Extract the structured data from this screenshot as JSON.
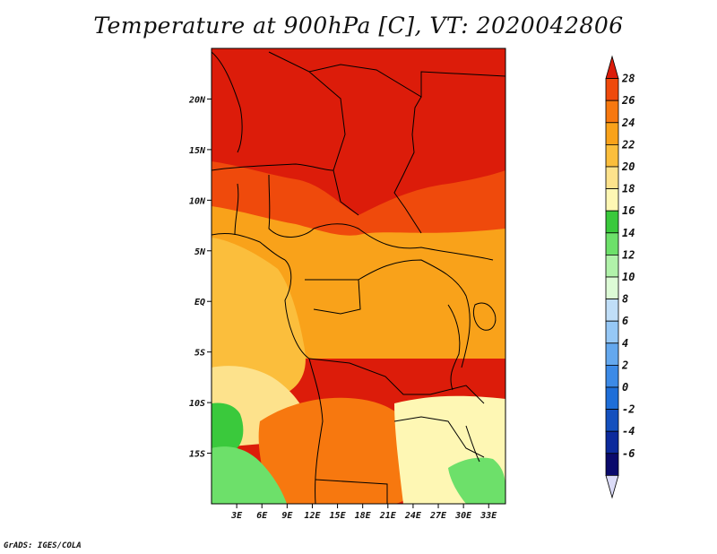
{
  "title": "Temperature at 900hPa [C], VT: 2020042806",
  "credit": "GrADS: IGES/COLA",
  "map": {
    "lat_range": [
      -20,
      25
    ],
    "lon_range": [
      0,
      35
    ],
    "lat_ticks": [
      {
        "lat": 20,
        "label": "20N"
      },
      {
        "lat": 15,
        "label": "15N"
      },
      {
        "lat": 10,
        "label": "10N"
      },
      {
        "lat": 5,
        "label": "5N"
      },
      {
        "lat": 0,
        "label": "EQ"
      },
      {
        "lat": -5,
        "label": "5S"
      },
      {
        "lat": -10,
        "label": "10S"
      },
      {
        "lat": -15,
        "label": "15S"
      }
    ],
    "lon_ticks": [
      {
        "lon": 3,
        "label": "3E"
      },
      {
        "lon": 6,
        "label": "6E"
      },
      {
        "lon": 9,
        "label": "9E"
      },
      {
        "lon": 12,
        "label": "12E"
      },
      {
        "lon": 15,
        "label": "15E"
      },
      {
        "lon": 18,
        "label": "18E"
      },
      {
        "lon": 21,
        "label": "21E"
      },
      {
        "lon": 24,
        "label": "24E"
      },
      {
        "lon": 27,
        "label": "27E"
      },
      {
        "lon": 30,
        "label": "30E"
      },
      {
        "lon": 33,
        "label": "33E"
      }
    ]
  },
  "colorbar": {
    "levels": [
      "28",
      "26",
      "24",
      "22",
      "20",
      "18",
      "16",
      "14",
      "12",
      "10",
      "8",
      "6",
      "4",
      "2",
      "0",
      "-2",
      "-4",
      "-6"
    ],
    "colors": [
      "#dc1c0a",
      "#ef4a0c",
      "#f7780f",
      "#f9a21a",
      "#fbbe3c",
      "#fde28c",
      "#fef7b4",
      "#3ac93c",
      "#6de06a",
      "#b1f2aa",
      "#ddfbd6",
      "#c0def8",
      "#96c8f6",
      "#64a8ee",
      "#3c8ae6",
      "#1e6ed8",
      "#1450be",
      "#0c2a9c",
      "#0a0a6c",
      "#dcdcf8"
    ]
  },
  "regions": [
    {
      "name": "sahara-hot-region",
      "color": "#dc1c0a"
    },
    {
      "name": "sahel-band",
      "color": "#ef4a0c"
    },
    {
      "name": "central-warm-region",
      "color": "#f9a21a"
    },
    {
      "name": "atlantic-region",
      "color": "#fbbe3c"
    },
    {
      "name": "south-west-cool-region",
      "color": "#fde28c"
    },
    {
      "name": "angola-warm-region",
      "color": "#f7780f"
    },
    {
      "name": "south-east-cool-region",
      "color": "#fef7b4"
    },
    {
      "name": "namibia-green-region",
      "color": "#3ac93c"
    },
    {
      "name": "namibia-lightgreen-region",
      "color": "#6de06a"
    },
    {
      "name": "mozambique-green-region",
      "color": "#6de06a"
    }
  ]
}
